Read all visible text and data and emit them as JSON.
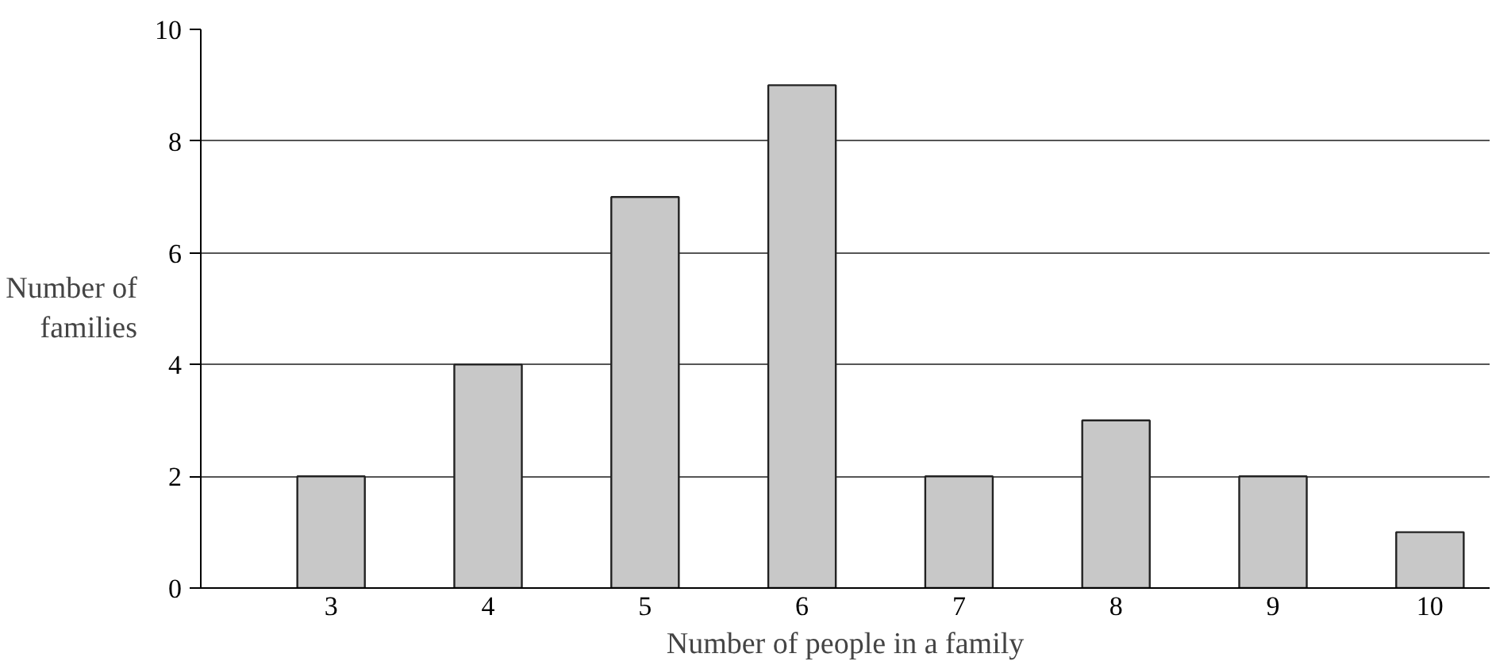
{
  "chart_data": {
    "type": "bar",
    "xlabel": "Number of people in a family",
    "ylabel": "Number of\nfamilies",
    "categories": [
      "3",
      "4",
      "5",
      "6",
      "7",
      "8",
      "9",
      "10"
    ],
    "values": [
      2,
      4,
      7,
      9,
      2,
      3,
      2,
      1
    ],
    "color": "#c8c8c8",
    "ylim": [
      0,
      10
    ],
    "yticks": [
      0,
      2,
      4,
      6,
      8,
      10
    ],
    "grid": "y"
  }
}
